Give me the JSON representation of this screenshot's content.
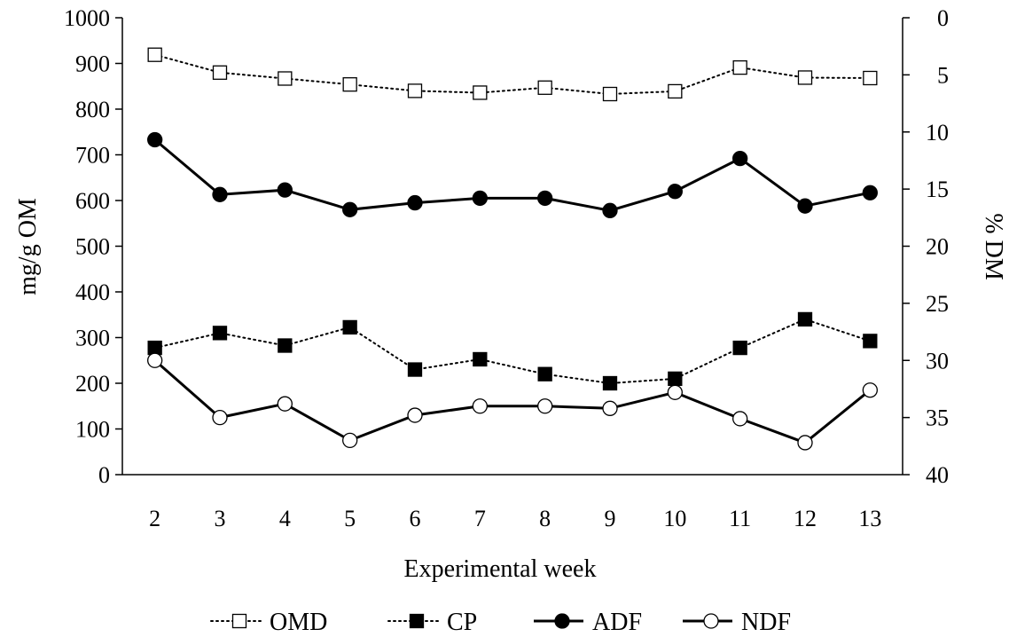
{
  "chart_data": {
    "type": "line",
    "title": "",
    "xlabel": "Experimental week",
    "ylabel": "mg/g OM",
    "ylabel_right": "% DM",
    "categories": [
      "2",
      "3",
      "4",
      "5",
      "6",
      "7",
      "8",
      "9",
      "10",
      "11",
      "12",
      "13"
    ],
    "ylim": [
      0,
      1000
    ],
    "ylim_right": [
      0,
      40
    ],
    "y_ticks": [
      "0",
      "100",
      "200",
      "300",
      "400",
      "500",
      "600",
      "700",
      "800",
      "900",
      "1000"
    ],
    "y_right_ticks": [
      "0",
      "5",
      "10",
      "15",
      "20",
      "25",
      "30",
      "35",
      "40"
    ],
    "y_right_inverted": true,
    "grid": false,
    "legend_position": "bottom",
    "series": [
      {
        "name": "OMD",
        "axis": "left",
        "line": "dotted",
        "marker": "square-open",
        "values": [
          919,
          880,
          867,
          854,
          840,
          836,
          847,
          833,
          839,
          891,
          869,
          868
        ]
      },
      {
        "name": "CP",
        "axis": "right",
        "line": "dotted",
        "marker": "square-filled",
        "values": [
          28.9,
          27.6,
          28.7,
          27.1,
          30.8,
          29.9,
          31.2,
          32.0,
          31.6,
          28.9,
          26.4,
          28.3
        ]
      },
      {
        "name": "ADF",
        "axis": "left",
        "line": "solid",
        "marker": "circle-filled",
        "values": [
          733,
          613,
          623,
          580,
          595,
          605,
          605,
          578,
          620,
          692,
          588,
          617
        ]
      },
      {
        "name": "NDF",
        "axis": "right",
        "line": "solid",
        "marker": "circle-open",
        "values": [
          30.0,
          35.0,
          33.8,
          37.0,
          34.8,
          34.0,
          34.0,
          34.2,
          32.8,
          35.1,
          37.2,
          32.6
        ]
      }
    ],
    "colors": {
      "line": "#000000",
      "marker_fill_open": "#ffffff",
      "marker_fill_filled": "#000000"
    }
  }
}
